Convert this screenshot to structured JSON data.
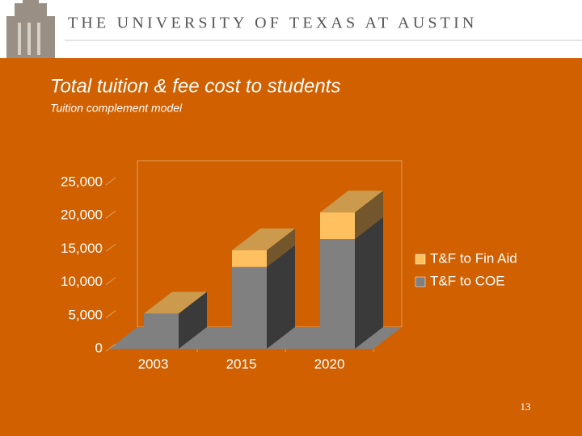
{
  "header": {
    "title": "THE UNIVERSITY OF TEXAS AT AUSTIN"
  },
  "chart_data": {
    "type": "bar",
    "stacked": true,
    "three_d": true,
    "title": "Total tuition &  fee cost to students",
    "subtitle": "Tuition complement model",
    "categories": [
      "2003",
      "2015",
      "2020"
    ],
    "series": [
      {
        "name": "T&F to COE",
        "color": "#808080",
        "values": [
          5300,
          12300,
          16500
        ]
      },
      {
        "name": "T&F to Fin Aid",
        "color": "#FFC060",
        "values": [
          0,
          2500,
          4000
        ]
      }
    ],
    "ylim": [
      0,
      25000
    ],
    "yticks": [
      0,
      {
        "value": 5000,
        "label": "5,000"
      },
      {
        "value": 10000,
        "label": "10,000"
      },
      {
        "value": 15000,
        "label": "15,000"
      },
      {
        "value": 20000,
        "label": "20,000"
      },
      {
        "value": 25000,
        "label": "25,000"
      }
    ],
    "legend": "right"
  },
  "slide_number": 13
}
